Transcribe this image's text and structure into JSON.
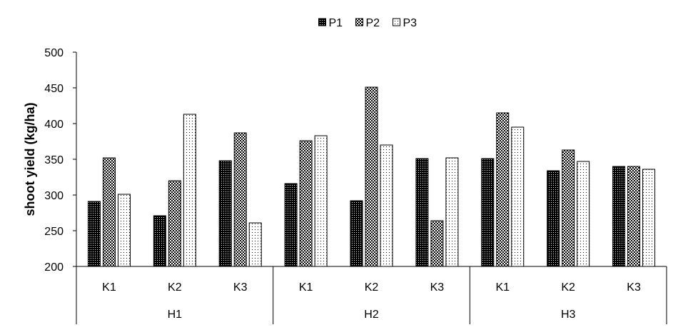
{
  "chart_data": {
    "type": "bar",
    "title": "",
    "xlabel": "",
    "ylabel": "shoot yield (kg/ha)",
    "ylim": [
      200,
      500
    ],
    "yticks": [
      200,
      250,
      300,
      350,
      400,
      450,
      500
    ],
    "grid": false,
    "legend_position": "top-center",
    "groups": [
      "H1",
      "H2",
      "H3"
    ],
    "categories": [
      "K1",
      "K2",
      "K3",
      "K1",
      "K2",
      "K3",
      "K1",
      "K2",
      "K3"
    ],
    "series": [
      {
        "name": "P1",
        "pattern": "dense-dots",
        "values": [
          291,
          271,
          348,
          316,
          292,
          351,
          351,
          334,
          340
        ]
      },
      {
        "name": "P2",
        "pattern": "medium-dots",
        "values": [
          352,
          320,
          387,
          376,
          451,
          264,
          415,
          363,
          340
        ]
      },
      {
        "name": "P3",
        "pattern": "sparse-dots",
        "values": [
          301,
          413,
          261,
          383,
          370,
          352,
          395,
          347,
          336
        ]
      }
    ]
  }
}
